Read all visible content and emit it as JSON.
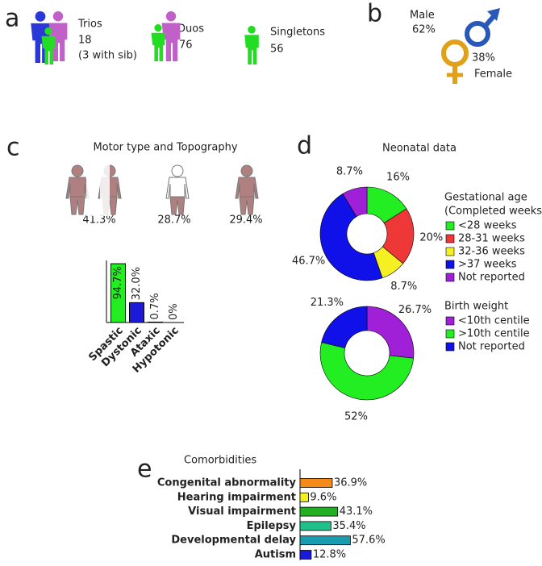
{
  "panel_labels": [
    "a",
    "b",
    "c",
    "d",
    "e"
  ],
  "family": {
    "groups": [
      {
        "name": "Trios",
        "count": 18,
        "note": "(3 with sib)"
      },
      {
        "name": "Duos",
        "count": 76
      },
      {
        "name": "Singletons",
        "count": 56
      }
    ]
  },
  "sex": {
    "male": {
      "label": "Male",
      "percent": "62%"
    },
    "female": {
      "label": "Female",
      "percent": "38%"
    }
  },
  "motor_title": "Motor type and Topography",
  "topography": [
    "41.3%",
    "28.7%",
    "29.4%"
  ],
  "neonatal_title": "Neonatal data",
  "chart_data": [
    {
      "type": "bar",
      "categories": [
        "Spastic",
        "Dystonic",
        "Ataxic",
        "Hypotonic"
      ],
      "values": [
        94.7,
        32.0,
        0.7,
        0
      ],
      "value_labels": [
        "94.7%",
        "32.0%",
        "0.7%",
        "0%"
      ],
      "colors": [
        "#22ee22",
        "#1a1ad8",
        "#ffffff",
        "#ffffff"
      ],
      "ylim": [
        0,
        100
      ]
    },
    {
      "type": "donut",
      "legend_title": [
        "Gestational age",
        "(Completed weeks)"
      ],
      "categories": [
        "<28 weeks",
        "28-31 weeks",
        "32-36 weeks",
        ">37 weeks",
        "Not reported"
      ],
      "values": [
        16,
        20,
        8.7,
        46.7,
        8.7
      ],
      "value_labels": [
        "16%",
        "20%",
        "8.7%",
        "46.7%",
        "8.7%"
      ],
      "colors": [
        "#22ee22",
        "#ee3838",
        "#f4f022",
        "#1010e8",
        "#a020d8"
      ]
    },
    {
      "type": "donut",
      "legend_title": [
        "Birth weight"
      ],
      "categories": [
        "<10th centile",
        ">10th centile",
        "Not reported"
      ],
      "values": [
        26.7,
        52,
        21.3
      ],
      "value_labels": [
        "26.7%",
        "52%",
        "21.3%"
      ],
      "colors": [
        "#a020d8",
        "#22ee22",
        "#1010e8"
      ]
    },
    {
      "type": "hbar",
      "title": "Comorbidities",
      "categories": [
        "Congenital abnormality",
        "Hearing impairment",
        "Visual impairment",
        "Epilepsy",
        "Developmental delay",
        "Autism"
      ],
      "values": [
        36.9,
        9.6,
        43.1,
        35.4,
        57.6,
        12.8
      ],
      "value_labels": [
        "36.9%",
        "9.6%",
        "43.1%",
        "35.4%",
        "57.6%",
        "12.8%"
      ],
      "colors": [
        "#f58a1a",
        "#f4f022",
        "#22b022",
        "#20c08a",
        "#1a9cb0",
        "#1a1ad8"
      ],
      "xlim": [
        0,
        60
      ]
    }
  ]
}
